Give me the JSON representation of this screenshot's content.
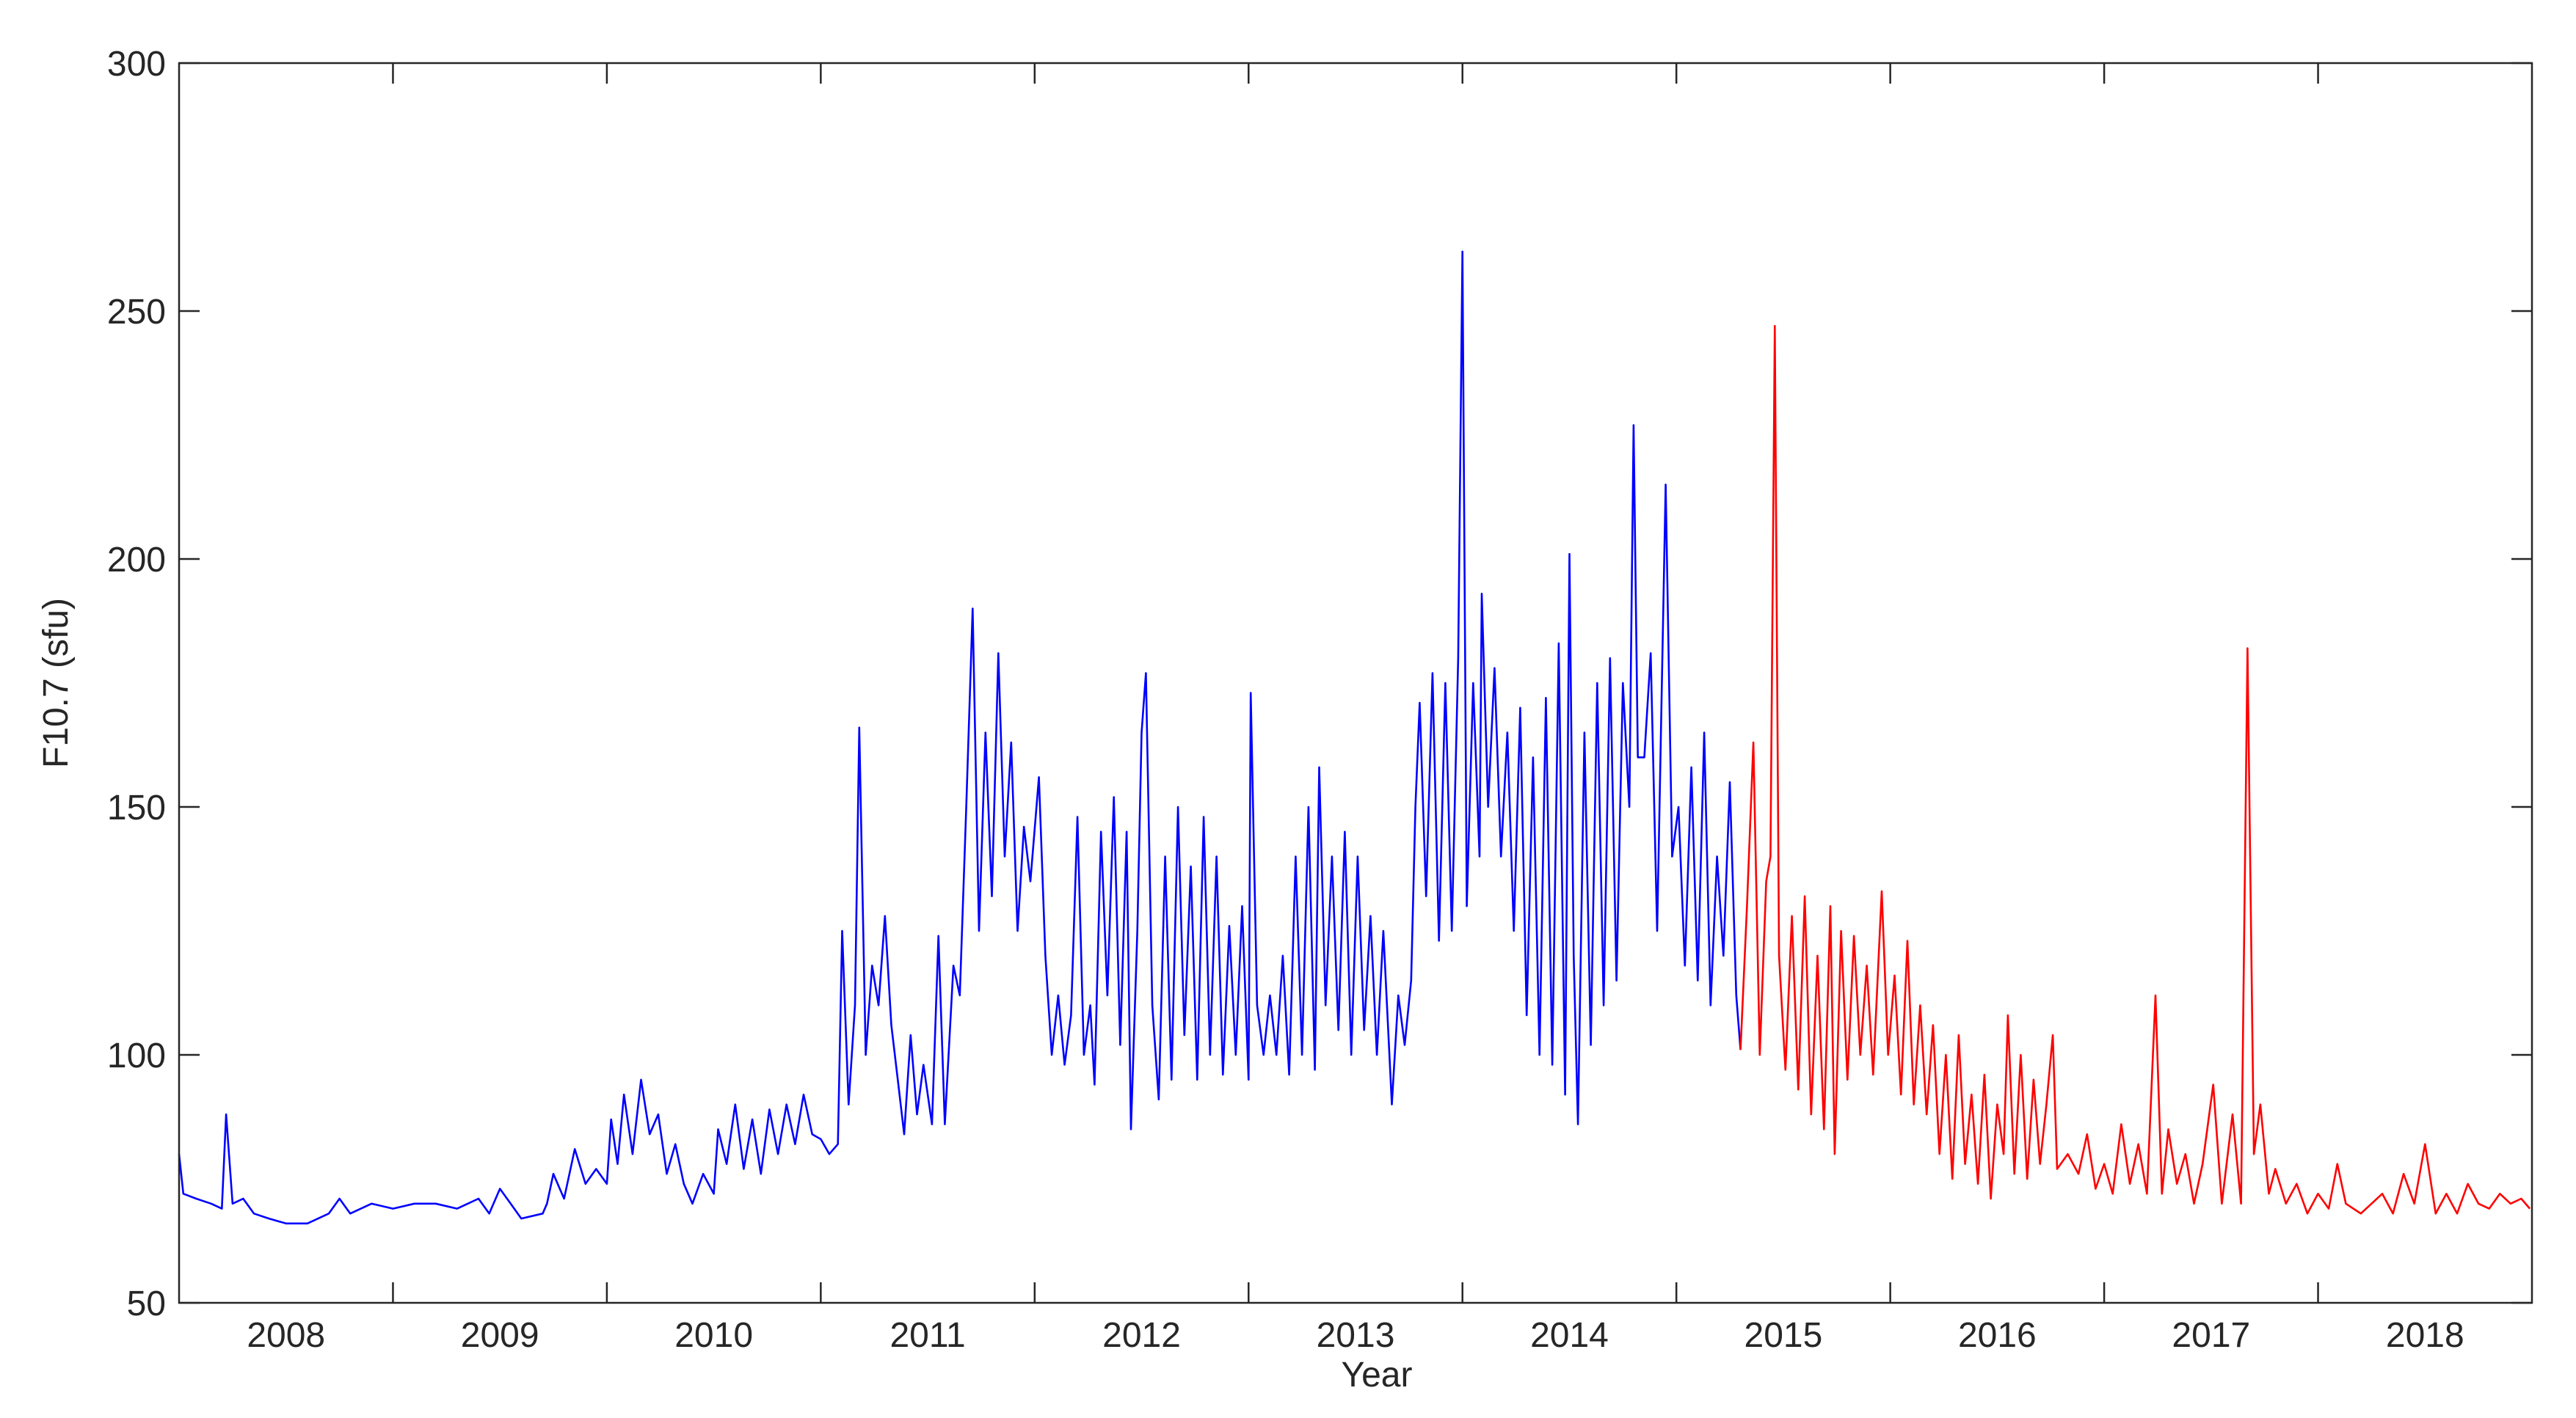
{
  "chart_data": {
    "type": "line",
    "xlabel": "Year",
    "ylabel": "F10.7 (sfu)",
    "xlim": [
      2008,
      2019
    ],
    "ylim": [
      50,
      300
    ],
    "xticks": [
      {
        "value": 2008.5,
        "label": "2008"
      },
      {
        "value": 2009.5,
        "label": "2009"
      },
      {
        "value": 2010.5,
        "label": "2010"
      },
      {
        "value": 2011.5,
        "label": "2011"
      },
      {
        "value": 2012.5,
        "label": "2012"
      },
      {
        "value": 2013.5,
        "label": "2013"
      },
      {
        "value": 2014.5,
        "label": "2014"
      },
      {
        "value": 2015.5,
        "label": "2015"
      },
      {
        "value": 2016.5,
        "label": "2016"
      },
      {
        "value": 2017.5,
        "label": "2017"
      },
      {
        "value": 2018.5,
        "label": "2018"
      }
    ],
    "xminorticks": [
      2009,
      2010,
      2011,
      2012,
      2013,
      2014,
      2015,
      2016,
      2017,
      2018
    ],
    "yticks": [
      50,
      100,
      150,
      200,
      250,
      300
    ],
    "series": [
      {
        "color": "#0000ff",
        "x": [
          2008,
          2008.02,
          2008.08,
          2008.15,
          2008.2,
          2008.22,
          2008.25,
          2008.3,
          2008.35,
          2008.42,
          2008.5,
          2008.6,
          2008.7,
          2008.75,
          2008.8,
          2008.9,
          2009,
          2009.1,
          2009.2,
          2009.3,
          2009.4,
          2009.45,
          2009.5,
          2009.55,
          2009.6,
          2009.7,
          2009.72,
          2009.75,
          2009.8,
          2009.85,
          2009.9,
          2009.95,
          2010,
          2010.02,
          2010.05,
          2010.08,
          2010.12,
          2010.16,
          2010.2,
          2010.24,
          2010.28,
          2010.32,
          2010.36,
          2010.4,
          2010.45,
          2010.5,
          2010.52,
          2010.56,
          2010.6,
          2010.64,
          2010.68,
          2010.72,
          2010.76,
          2010.8,
          2010.84,
          2010.88,
          2010.92,
          2010.96,
          2011,
          2011.04,
          2011.08,
          2011.1,
          2011.13,
          2011.16,
          2011.18,
          2011.21,
          2011.24,
          2011.27,
          2011.3,
          2011.33,
          2011.36,
          2011.39,
          2011.42,
          2011.45,
          2011.48,
          2011.52,
          2011.55,
          2011.58,
          2011.62,
          2011.65,
          2011.68,
          2011.71,
          2011.74,
          2011.77,
          2011.8,
          2011.83,
          2011.86,
          2011.89,
          2011.92,
          2011.95,
          2011.98,
          2012.02,
          2012.05,
          2012.08,
          2012.11,
          2012.14,
          2012.17,
          2012.2,
          2012.23,
          2012.26,
          2012.28,
          2012.31,
          2012.34,
          2012.37,
          2012.4,
          2012.43,
          2012.45,
          2012.48,
          2012.5,
          2012.52,
          2012.55,
          2012.58,
          2012.61,
          2012.64,
          2012.67,
          2012.7,
          2012.73,
          2012.76,
          2012.79,
          2012.82,
          2012.85,
          2012.88,
          2012.91,
          2012.94,
          2012.97,
          2013,
          2013.01,
          2013.04,
          2013.07,
          2013.1,
          2013.13,
          2013.16,
          2013.19,
          2013.22,
          2013.25,
          2013.28,
          2013.31,
          2013.33,
          2013.36,
          2013.39,
          2013.42,
          2013.45,
          2013.48,
          2013.51,
          2013.54,
          2013.57,
          2013.6,
          2013.63,
          2013.67,
          2013.7,
          2013.73,
          2013.76,
          2013.78,
          2013.8,
          2013.83,
          2013.86,
          2013.89,
          2013.92,
          2013.95,
          2013.98,
          2014,
          2014.02,
          2014.05,
          2014.08,
          2014.09,
          2014.12,
          2014.15,
          2014.18,
          2014.21,
          2014.24,
          2014.27,
          2014.3,
          2014.33,
          2014.36,
          2014.39,
          2014.42,
          2014.45,
          2014.48,
          2014.5,
          2014.52,
          2014.54,
          2014.57,
          2014.6,
          2014.63,
          2014.66,
          2014.69,
          2014.72,
          2014.75,
          2014.78,
          2014.8,
          2014.82,
          2014.85,
          2014.88,
          2014.91,
          2014.95,
          2014.98,
          2015.01,
          2015.04,
          2015.07,
          2015.1,
          2015.13,
          2015.16,
          2015.19,
          2015.22,
          2015.25,
          2015.28,
          2015.3
        ],
        "values": [
          80,
          72,
          71,
          70,
          69,
          88,
          70,
          71,
          68,
          67,
          66,
          66,
          68,
          71,
          68,
          70,
          69,
          70,
          70,
          69,
          71,
          68,
          73,
          70,
          67,
          68,
          70,
          76,
          71,
          81,
          74,
          77,
          74,
          87,
          78,
          92,
          80,
          95,
          84,
          88,
          76,
          82,
          74,
          70,
          76,
          72,
          85,
          78,
          90,
          77,
          87,
          76,
          89,
          80,
          90,
          82,
          92,
          84,
          83,
          80,
          82,
          125,
          90,
          110,
          166,
          100,
          118,
          110,
          128,
          106,
          95,
          84,
          104,
          88,
          98,
          86,
          124,
          86,
          118,
          112,
          150,
          190,
          125,
          165,
          132,
          181,
          140,
          163,
          125,
          146,
          135,
          156,
          120,
          100,
          112,
          98,
          108,
          148,
          100,
          110,
          94,
          145,
          112,
          152,
          102,
          145,
          85,
          125,
          165,
          177,
          110,
          91,
          140,
          95,
          150,
          104,
          138,
          95,
          148,
          100,
          140,
          96,
          126,
          100,
          130,
          95,
          173,
          110,
          100,
          112,
          100,
          120,
          96,
          140,
          100,
          150,
          97,
          158,
          110,
          140,
          105,
          145,
          100,
          140,
          105,
          128,
          100,
          125,
          90,
          112,
          102,
          115,
          150,
          171,
          132,
          177,
          123,
          175,
          125,
          180,
          262,
          130,
          175,
          140,
          193,
          150,
          178,
          140,
          165,
          125,
          170,
          108,
          160,
          100,
          172,
          98,
          183,
          92,
          201,
          120,
          86,
          165,
          102,
          175,
          110,
          180,
          115,
          175,
          150,
          227,
          160,
          160,
          181,
          125,
          215,
          140,
          150,
          118,
          158,
          115,
          165,
          110,
          140,
          120,
          155,
          112,
          101
        ]
      },
      {
        "color": "#ff0000",
        "x": [
          2015.3,
          2015.33,
          2015.36,
          2015.39,
          2015.42,
          2015.44,
          2015.46,
          2015.48,
          2015.51,
          2015.54,
          2015.57,
          2015.6,
          2015.63,
          2015.66,
          2015.69,
          2015.72,
          2015.74,
          2015.77,
          2015.8,
          2015.83,
          2015.86,
          2015.89,
          2015.92,
          2015.96,
          2015.99,
          2016.02,
          2016.05,
          2016.08,
          2016.11,
          2016.14,
          2016.17,
          2016.2,
          2016.23,
          2016.26,
          2016.29,
          2016.32,
          2016.35,
          2016.38,
          2016.41,
          2016.44,
          2016.47,
          2016.5,
          2016.53,
          2016.55,
          2016.58,
          2016.61,
          2016.64,
          2016.67,
          2016.7,
          2016.73,
          2016.76,
          2016.78,
          2016.83,
          2016.88,
          2016.92,
          2016.96,
          2017,
          2017.04,
          2017.08,
          2017.12,
          2017.16,
          2017.2,
          2017.24,
          2017.27,
          2017.3,
          2017.34,
          2017.38,
          2017.42,
          2017.46,
          2017.51,
          2017.55,
          2017.6,
          2017.64,
          2017.67,
          2017.7,
          2017.73,
          2017.77,
          2017.8,
          2017.85,
          2017.9,
          2017.95,
          2018,
          2018.05,
          2018.09,
          2018.13,
          2018.2,
          2018.25,
          2018.3,
          2018.35,
          2018.4,
          2018.45,
          2018.5,
          2018.55,
          2018.6,
          2018.65,
          2018.7,
          2018.75,
          2018.8,
          2018.85,
          2018.9,
          2018.95,
          2018.99
        ],
        "values": [
          101,
          130,
          163,
          100,
          135,
          140,
          247,
          120,
          97,
          128,
          93,
          132,
          88,
          120,
          85,
          130,
          80,
          125,
          95,
          124,
          100,
          118,
          96,
          133,
          100,
          116,
          92,
          123,
          90,
          110,
          88,
          106,
          80,
          100,
          75,
          104,
          78,
          92,
          74,
          96,
          71,
          90,
          80,
          108,
          76,
          100,
          75,
          95,
          78,
          90,
          104,
          77,
          80,
          76,
          84,
          73,
          78,
          72,
          86,
          74,
          82,
          72,
          112,
          72,
          85,
          74,
          80,
          70,
          78,
          94,
          70,
          88,
          70,
          182,
          80,
          90,
          72,
          77,
          70,
          74,
          68,
          72,
          69,
          78,
          70,
          68,
          70,
          72,
          68,
          76,
          70,
          82,
          68,
          72,
          68,
          74,
          70,
          69,
          72,
          70,
          71,
          69
        ]
      }
    ]
  }
}
